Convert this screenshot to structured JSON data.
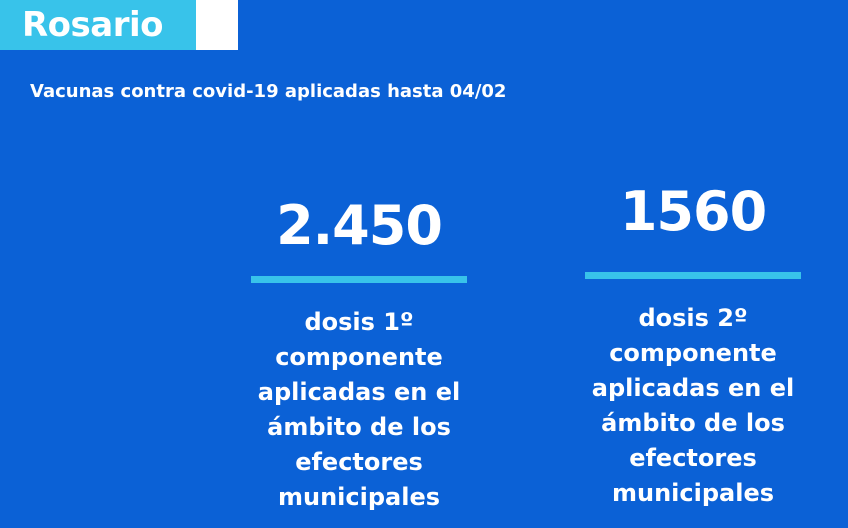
{
  "header": {
    "city": "Rosario"
  },
  "subtitle": "Vacunas contra covid-19 aplicadas hasta 04/02",
  "stats": [
    {
      "value": "2.450",
      "description": "dosis 1º componente aplicadas en el ámbito de los efectores municipales"
    },
    {
      "value": "1560",
      "description": "dosis 2º componente aplicadas en el ámbito de los efectores municipales"
    }
  ],
  "colors": {
    "background": "#0b61d6",
    "accent": "#38c3ea",
    "text": "#ffffff"
  }
}
